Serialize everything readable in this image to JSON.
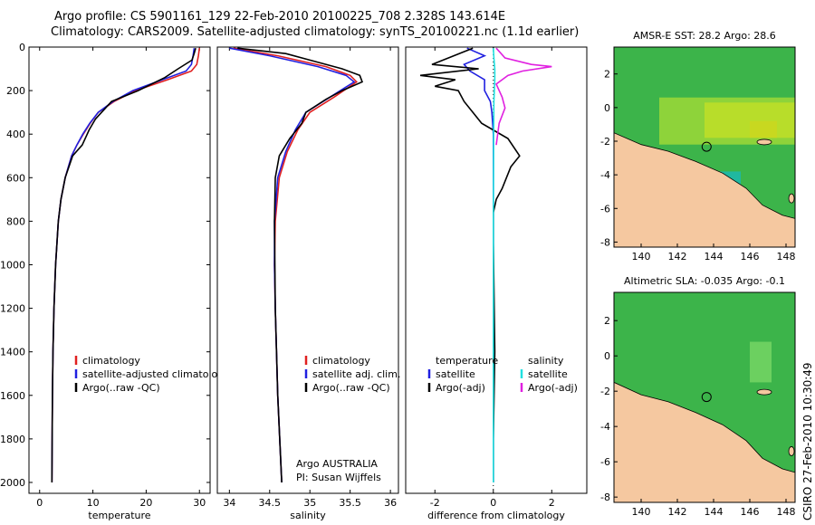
{
  "header": {
    "line1": "Argo profile: CS 5901161_129 22-Feb-2010 20100225_708 2.328S 143.614E",
    "line2": "Climatology: CARS2009. Satellite-adjusted climatology: synTS_20100221.nc (1.1d earlier)"
  },
  "colors": {
    "climatology": "#e02020",
    "satellite": "#2020e0",
    "argo": "#000000",
    "sal_satellite": "#20e0e0",
    "sal_argo": "#e020e0",
    "land": "#f5c8a0",
    "ocean": "#3cb44a"
  },
  "credit": "CSIRO 27-Feb-2010 10:30:49",
  "chart_data": [
    {
      "type": "line",
      "id": "temperature",
      "xlabel": "temperature",
      "ylabel": "",
      "xlim": [
        -2,
        32
      ],
      "ylim": [
        2050,
        0
      ],
      "xticks": [
        0,
        10,
        20,
        30
      ],
      "yticks": [
        0,
        200,
        400,
        600,
        800,
        1000,
        1200,
        1400,
        1600,
        1800,
        2000
      ],
      "legend": [
        "climatology",
        "satellite-adjusted climatology",
        "Argo(..raw -QC)"
      ],
      "legend_position": "lower-right",
      "series": [
        {
          "name": "climatology",
          "color": "#e02020",
          "x": [
            30.0,
            29.8,
            29.5,
            28.5,
            24,
            18,
            14,
            11,
            9.5,
            8.2,
            7.0,
            6.0,
            4.8,
            4.0,
            3.5,
            3.0,
            2.7,
            2.5,
            2.4,
            2.3
          ],
          "y": [
            5,
            40,
            80,
            110,
            150,
            200,
            250,
            300,
            350,
            400,
            450,
            500,
            600,
            700,
            800,
            1000,
            1200,
            1400,
            1600,
            2000
          ]
        },
        {
          "name": "satellite-adjusted climatology",
          "color": "#2020e0",
          "x": [
            29.0,
            28.8,
            28.5,
            27.5,
            23,
            17.5,
            13.8,
            11,
            9.4,
            8.1,
            7.0,
            6.0,
            4.8,
            4.0,
            3.5,
            3.0,
            2.7,
            2.5,
            2.4,
            2.3
          ],
          "y": [
            5,
            40,
            80,
            110,
            150,
            200,
            250,
            300,
            350,
            400,
            450,
            500,
            600,
            700,
            800,
            1000,
            1200,
            1400,
            1600,
            2000
          ]
        },
        {
          "name": "Argo(..raw -QC)",
          "color": "#000000",
          "x": [
            29.3,
            29.0,
            28.6,
            26.0,
            23.5,
            18.5,
            13.5,
            12.0,
            10.5,
            9.3,
            8.0,
            6.2,
            4.8,
            4.0,
            3.5,
            3.0,
            2.7,
            2.5,
            2.4,
            2.3
          ],
          "y": [
            5,
            30,
            60,
            100,
            140,
            200,
            250,
            290,
            330,
            380,
            450,
            500,
            600,
            700,
            800,
            1000,
            1200,
            1400,
            1600,
            2000
          ]
        }
      ]
    },
    {
      "type": "line",
      "id": "salinity",
      "xlabel": "salinity",
      "ylabel": "",
      "xlim": [
        33.85,
        36.1
      ],
      "ylim": [
        2050,
        0
      ],
      "xticks": [
        34,
        34.5,
        35,
        35.5,
        36
      ],
      "yticks": [],
      "legend": [
        "climatology",
        "satellite adj. clim.",
        "Argo(..raw -QC)"
      ],
      "legend_position": "lower-right",
      "annotation": [
        "Argo AUSTRALIA",
        "PI: Susan Wijffels"
      ],
      "series": [
        {
          "name": "climatology",
          "color": "#e02020",
          "x": [
            34.05,
            34.6,
            35.2,
            35.5,
            35.58,
            35.3,
            35.0,
            34.85,
            34.72,
            34.62,
            34.57,
            34.56,
            34.57,
            34.6,
            34.65
          ],
          "y": [
            5,
            40,
            90,
            130,
            160,
            230,
            300,
            380,
            480,
            600,
            800,
            1000,
            1200,
            1600,
            2000
          ]
        },
        {
          "name": "satellite adj. clim.",
          "color": "#2020e0",
          "x": [
            34.0,
            34.5,
            35.1,
            35.45,
            35.55,
            35.25,
            34.95,
            34.82,
            34.7,
            34.6,
            34.56,
            34.56,
            34.57,
            34.6,
            34.65
          ],
          "y": [
            5,
            40,
            90,
            130,
            160,
            230,
            300,
            380,
            480,
            600,
            800,
            1000,
            1200,
            1600,
            2000
          ]
        },
        {
          "name": "Argo(..raw -QC)",
          "color": "#000000",
          "x": [
            34.1,
            34.7,
            35.0,
            35.4,
            35.62,
            35.65,
            35.4,
            35.2,
            34.95,
            34.9,
            34.75,
            34.62,
            34.57,
            34.56,
            34.57,
            34.6,
            34.65
          ],
          "y": [
            5,
            30,
            60,
            100,
            130,
            160,
            200,
            240,
            300,
            350,
            420,
            500,
            600,
            800,
            1200,
            1600,
            2000
          ]
        }
      ]
    },
    {
      "type": "line",
      "id": "difference",
      "xlabel": "difference from climatology",
      "ylabel": "",
      "xlim": [
        -3,
        3.2
      ],
      "ylim": [
        2050,
        0
      ],
      "xticks": [
        -2,
        0,
        2
      ],
      "yticks": [],
      "legend_left_title": "temperature",
      "legend_right_title": "salinity",
      "legend": [
        "satellite",
        "Argo(-adj)",
        "satellite",
        "Argo(-adj)"
      ],
      "series": [
        {
          "name": "temperature satellite",
          "color": "#2020e0",
          "x": [
            -0.9,
            -0.3,
            -1.0,
            -0.8,
            -0.3,
            -0.3,
            -0.1,
            -0.05,
            0,
            0,
            0,
            0,
            0
          ],
          "y": [
            5,
            40,
            80,
            110,
            150,
            200,
            250,
            300,
            400,
            600,
            1000,
            1600,
            2000
          ]
        },
        {
          "name": "temperature Argo(-adj)",
          "color": "#000000",
          "x": [
            -0.7,
            -2.1,
            -0.5,
            -2.5,
            -1.3,
            -2.0,
            -1.2,
            -1.0,
            -0.4,
            0.5,
            0.9,
            0.6,
            0.3,
            0.1,
            0,
            0,
            0.05,
            0,
            0
          ],
          "y": [
            5,
            80,
            100,
            130,
            150,
            180,
            200,
            250,
            350,
            420,
            500,
            550,
            650,
            700,
            760,
            900,
            1400,
            1800,
            2000
          ]
        },
        {
          "name": "salinity satellite",
          "color": "#20e0e0",
          "x": [
            0,
            0.02,
            0.05,
            0.05,
            0.02,
            0.01,
            0,
            0,
            0
          ],
          "y": [
            5,
            50,
            100,
            150,
            250,
            400,
            800,
            1500,
            2000
          ]
        },
        {
          "name": "salinity Argo(-adj)",
          "color": "#e020e0",
          "x": [
            0.1,
            0.4,
            1.3,
            2.0,
            1.0,
            0.5,
            0.1,
            0.3,
            0.4,
            0.2,
            0.1
          ],
          "y": [
            5,
            50,
            80,
            90,
            110,
            130,
            170,
            230,
            280,
            350,
            450
          ]
        }
      ]
    },
    {
      "type": "heatmap",
      "id": "sst-map",
      "title": "AMSR-E SST: 28.2 Argo: 28.6",
      "xlim": [
        138.5,
        148.5
      ],
      "ylim": [
        -8.3,
        3.6
      ],
      "xticks": [
        140,
        142,
        144,
        146,
        148
      ],
      "yticks": [
        -8,
        -6,
        -4,
        -2,
        0,
        2
      ],
      "marker": {
        "lon": 143.614,
        "lat": -2.328
      }
    },
    {
      "type": "heatmap",
      "id": "sla-map",
      "title": "Altimetric SLA: -0.035 Argo: -0.1",
      "xlim": [
        138.5,
        148.5
      ],
      "ylim": [
        -8.3,
        3.6
      ],
      "xticks": [
        140,
        142,
        144,
        146,
        148
      ],
      "yticks": [
        -8,
        -6,
        -4,
        -2,
        0,
        2
      ],
      "marker": {
        "lon": 143.614,
        "lat": -2.328
      }
    }
  ]
}
